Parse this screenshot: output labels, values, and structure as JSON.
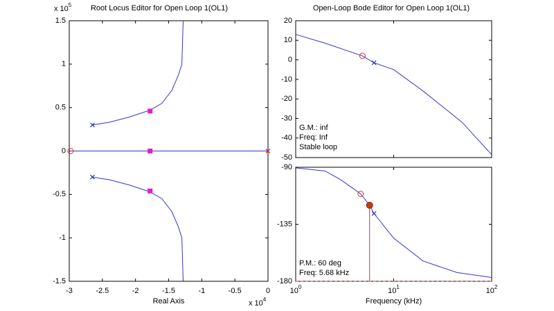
{
  "chart_data": [
    {
      "type": "line",
      "title": "Root Locus Editor for Open Loop 1(OL1)",
      "xlabel": "Real Axis",
      "x_multiplier": "x 10^4",
      "y_multiplier": "x 10^5",
      "xlim": [
        -3,
        0
      ],
      "xticks": [
        -3,
        -2.5,
        -2,
        -1.5,
        -1,
        -0.5,
        0
      ],
      "ylim": [
        -1.5,
        1.5
      ],
      "yticks": [
        -1.5,
        -1,
        -0.5,
        0,
        0.5,
        1,
        1.5
      ],
      "series": [
        {
          "color": "#3333cc",
          "x": [
            -2.65,
            -2.4,
            -2.1,
            -1.78,
            -1.6,
            -1.45,
            -1.35,
            -1.3,
            -1.28
          ],
          "values": [
            0.3,
            0.33,
            0.39,
            0.47,
            0.55,
            0.7,
            0.88,
            1.0,
            1.5
          ]
        },
        {
          "color": "#3333cc",
          "x": [
            -2.65,
            -2.4,
            -2.1,
            -1.78,
            -1.6,
            -1.45,
            -1.35,
            -1.3,
            -1.28
          ],
          "values": [
            -0.3,
            -0.33,
            -0.39,
            -0.47,
            -0.55,
            -0.7,
            -0.88,
            -1.0,
            -1.5
          ]
        },
        {
          "color": "#3333cc",
          "x": [
            -2.98,
            0
          ],
          "values": [
            0,
            0
          ]
        },
        {
          "color": "#3333cc",
          "marker": "x",
          "x": [
            -2.65,
            -2.65
          ],
          "values": [
            0.3,
            -0.3
          ]
        },
        {
          "color": "#cc3333",
          "marker": "x",
          "x": [
            0
          ],
          "values": [
            0
          ]
        },
        {
          "color": "#cc3333",
          "marker": "o",
          "x": [
            -2.98
          ],
          "values": [
            0
          ]
        },
        {
          "color": "#e020c0",
          "marker": "square",
          "x": [
            -1.78,
            -1.78,
            -1.78
          ],
          "values": [
            0.46,
            0,
            -0.46
          ]
        }
      ]
    },
    {
      "type": "line",
      "title": "Open-Loop Bode Editor for Open Loop 1(OL1)",
      "xscale": "log",
      "xlim": [
        1,
        100
      ],
      "xticks": [
        1,
        10,
        100
      ],
      "show_xtick_labels": false,
      "ylim": [
        -50,
        20
      ],
      "yticks": [
        -50,
        -40,
        -30,
        -20,
        -10,
        0,
        10,
        20
      ],
      "annotations": [
        "G.M.: inf",
        "Freq: Inf",
        "Stable loop"
      ],
      "series": [
        {
          "color": "#3333cc",
          "x": [
            1,
            2,
            4.8,
            6.3,
            10,
            20,
            50,
            100
          ],
          "values": [
            13,
            8.5,
            2,
            -1.5,
            -5,
            -16,
            -32,
            -48.5
          ]
        },
        {
          "color": "#cc3333",
          "marker": "o",
          "x": [
            4.8
          ],
          "values": [
            2
          ]
        },
        {
          "color": "#3333cc",
          "marker": "x",
          "x": [
            6.3
          ],
          "values": [
            -1.5
          ]
        }
      ]
    },
    {
      "type": "line",
      "xlabel": "Frequency (kHz)",
      "xscale": "log",
      "xlim": [
        1,
        100
      ],
      "xticks": [
        {
          "value": 1,
          "label": "10^0"
        },
        {
          "value": 10,
          "label": "10^1"
        },
        {
          "value": 100,
          "label": "10^2"
        }
      ],
      "ylim": [
        -180,
        -90
      ],
      "yticks": [
        -180,
        -135,
        -90
      ],
      "annotations": [
        "P.M.: 60 deg",
        "Freq: 5.68 kHz"
      ],
      "series": [
        {
          "color": "#3333cc",
          "x": [
            1,
            2,
            2.9,
            4.6,
            5.68,
            6.3,
            10,
            20,
            44,
            100
          ],
          "values": [
            -90.5,
            -93,
            -100,
            -111,
            -120,
            -126.5,
            -146,
            -164,
            -173,
            -177
          ]
        },
        {
          "color": "#cc3333",
          "x": [
            5.68,
            5.68
          ],
          "values": [
            -120,
            -180
          ]
        },
        {
          "color": "#cc3333",
          "dash": true,
          "x": [
            1,
            100
          ],
          "values": [
            -180,
            -180
          ]
        },
        {
          "color": "#cc3333",
          "marker": "o",
          "x": [
            4.6
          ],
          "values": [
            -111
          ]
        },
        {
          "color": "#c04010",
          "marker": "dot",
          "x": [
            5.68
          ],
          "values": [
            -120
          ]
        },
        {
          "color": "#3333cc",
          "marker": "x",
          "x": [
            6.3
          ],
          "values": [
            -126.5
          ]
        }
      ]
    }
  ]
}
